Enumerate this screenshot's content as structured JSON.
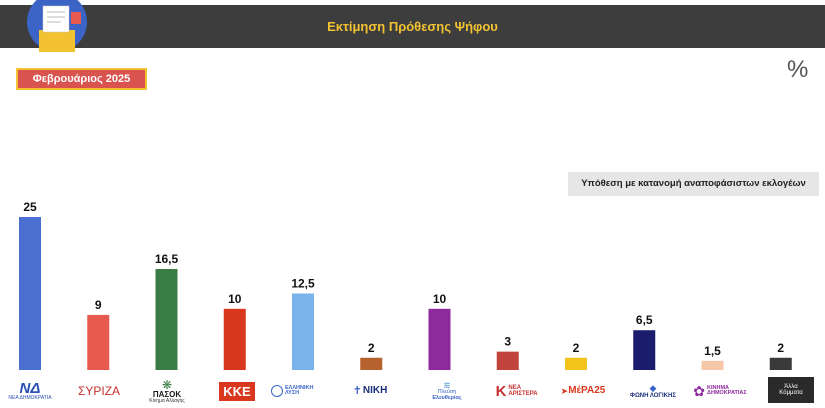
{
  "header": {
    "title": "Εκτίμηση Πρόθεσης Ψήφου"
  },
  "date_badge": "Φεβρουάριος 2025",
  "unit_symbol": "%",
  "scenario_note": "Υπόθεση με κατανομή αναποφάσιστων εκλογέων",
  "colors": {
    "header_bg": "#3d3d3d",
    "title": "#f2c230",
    "badge_bg": "#d9534f"
  },
  "chart_data": {
    "type": "bar",
    "title": "Εκτίμηση Πρόθεσης Ψήφου",
    "xlabel": "",
    "ylabel": "",
    "ylim": [
      0,
      25
    ],
    "grid": false,
    "categories": [
      "ΝΔ",
      "ΣΥΡΙΖΑ",
      "ΠΑΣΟΚ",
      "ΚΚΕ",
      "ΕΛΛΗΝΙΚΗ ΛΥΣΗ",
      "ΝΙΚΗ",
      "Πλεύση Ελευθερίας",
      "ΝΕΑ ΑΡΙΣΤΕΡΑ",
      "ΜέΡΑ25",
      "ΦΩΝΗ ΛΟΓΙΚΗΣ",
      "ΚΙΝΗΜΑ ΔΗΜΟΚΡΑΤΙΑΣ",
      "Άλλα Κόμματα"
    ],
    "values": [
      25,
      9,
      16.5,
      10,
      12.5,
      2,
      10,
      3,
      2,
      6.5,
      1.5,
      2
    ],
    "value_labels": [
      "25",
      "9",
      "16,5",
      "10",
      "12,5",
      "2",
      "10",
      "3",
      "2",
      "6,5",
      "1,5",
      "2"
    ],
    "colors": [
      "#4a6fd1",
      "#e85a50",
      "#3a7d44",
      "#d9381e",
      "#7ab3ea",
      "#b5622e",
      "#8e2a9e",
      "#c0443c",
      "#f2c41c",
      "#1c1c6e",
      "#f5c9a8",
      "#3a3a3a"
    ]
  },
  "logos": {
    "nd": "ΝΔ",
    "nd_sub": "ΝΕΑ ΔΗΜΟΚΡΑΤΙΑ",
    "syriza": "ΣΥΡΙΖΑ",
    "pasok": "ΠΑΣΟΚ",
    "pasok_sub": "Κίνημα Αλλαγής",
    "kke": "ΚΚΕ",
    "el_lysi": "ΕΛΛΗΝΙΚΗ ΛΥΣΗ",
    "niki": "ΝΙΚΗ",
    "plefsi_1": "Πλεύση",
    "plefsi_2": "Ελευθερίας",
    "nea_aristera": "ΝΕΑ ΑΡΙΣΤΕΡΑ",
    "mera25": "ΜέΡΑ25",
    "foni_logikis": "ΦΩΝΗ ΛΟΓΙΚΗΣ",
    "kinima_1": "ΚΙΝΗΜΑ",
    "kinima_2": "ΔΗΜΟΚΡΑΤΙΑΣ",
    "alla_1": "Άλλα",
    "alla_2": "Κόμματα"
  }
}
